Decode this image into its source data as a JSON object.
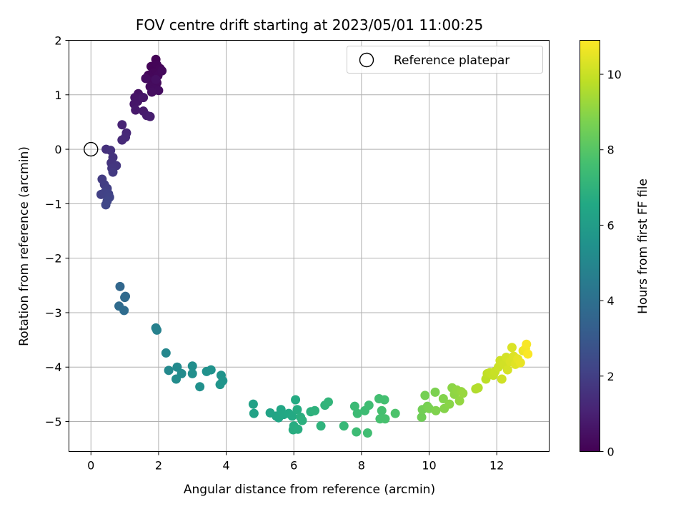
{
  "chart_data": {
    "type": "scatter",
    "title": "FOV centre drift starting at 2023/05/01 11:00:25",
    "xlabel": "Angular distance from reference (arcmin)",
    "ylabel": "Rotation from reference (arcmin)",
    "xlim": [
      -0.65,
      13.55
    ],
    "ylim": [
      -5.55,
      2.0
    ],
    "xticks": [
      0,
      2,
      4,
      6,
      8,
      10,
      12
    ],
    "xtick_labels": [
      "0",
      "2",
      "4",
      "6",
      "8",
      "10",
      "12"
    ],
    "yticks": [
      2,
      1,
      0,
      -1,
      -2,
      -3,
      -4,
      -5
    ],
    "ytick_labels": [
      "2",
      "1",
      "0",
      "−1",
      "−2",
      "−3",
      "−4",
      "−5"
    ],
    "grid": true,
    "legend": {
      "placement": "top-right",
      "entries": [
        "Reference platepar"
      ]
    },
    "reference_point": {
      "x": 0,
      "y": 0
    },
    "colorbar": {
      "label": "Hours from first FF file",
      "colormap": "viridis",
      "range": [
        0,
        10.9
      ],
      "ticks": [
        0,
        2,
        4,
        6,
        8,
        10
      ],
      "tick_labels": [
        "0",
        "2",
        "4",
        "6",
        "8",
        "10"
      ]
    },
    "points": [
      {
        "x": 1.92,
        "y": 1.65,
        "c": 0.05
      },
      {
        "x": 1.78,
        "y": 1.52,
        "c": 0.1
      },
      {
        "x": 1.95,
        "y": 1.55,
        "c": 0.12
      },
      {
        "x": 2.05,
        "y": 1.48,
        "c": 0.15
      },
      {
        "x": 1.85,
        "y": 1.4,
        "c": 0.18
      },
      {
        "x": 1.7,
        "y": 1.36,
        "c": 0.2
      },
      {
        "x": 1.98,
        "y": 1.35,
        "c": 0.22
      },
      {
        "x": 2.1,
        "y": 1.44,
        "c": 0.25
      },
      {
        "x": 1.8,
        "y": 1.25,
        "c": 0.28
      },
      {
        "x": 1.95,
        "y": 1.22,
        "c": 0.3
      },
      {
        "x": 1.75,
        "y": 1.15,
        "c": 0.33
      },
      {
        "x": 1.88,
        "y": 1.1,
        "c": 0.35
      },
      {
        "x": 2.0,
        "y": 1.08,
        "c": 0.38
      },
      {
        "x": 1.8,
        "y": 1.05,
        "c": 0.4
      },
      {
        "x": 1.62,
        "y": 1.3,
        "c": 0.42
      },
      {
        "x": 1.92,
        "y": 1.28,
        "c": 0.45
      },
      {
        "x": 1.4,
        "y": 1.02,
        "c": 0.5
      },
      {
        "x": 1.48,
        "y": 0.96,
        "c": 0.55
      },
      {
        "x": 1.3,
        "y": 0.95,
        "c": 0.6
      },
      {
        "x": 1.38,
        "y": 0.88,
        "c": 0.62
      },
      {
        "x": 1.28,
        "y": 0.83,
        "c": 0.65
      },
      {
        "x": 1.55,
        "y": 0.95,
        "c": 0.7
      },
      {
        "x": 1.32,
        "y": 0.72,
        "c": 0.75
      },
      {
        "x": 1.55,
        "y": 0.7,
        "c": 0.8
      },
      {
        "x": 1.65,
        "y": 0.62,
        "c": 0.85
      },
      {
        "x": 1.75,
        "y": 0.6,
        "c": 0.9
      },
      {
        "x": 1.05,
        "y": 0.3,
        "c": 1.2
      },
      {
        "x": 0.92,
        "y": 0.45,
        "c": 1.1
      },
      {
        "x": 1.02,
        "y": 0.22,
        "c": 1.25
      },
      {
        "x": 0.92,
        "y": 0.17,
        "c": 1.3
      },
      {
        "x": 0.45,
        "y": 0.0,
        "c": 1.5
      },
      {
        "x": 0.58,
        "y": -0.02,
        "c": 1.55
      },
      {
        "x": 0.65,
        "y": -0.15,
        "c": 1.6
      },
      {
        "x": 0.6,
        "y": -0.25,
        "c": 1.65
      },
      {
        "x": 0.75,
        "y": -0.3,
        "c": 1.7
      },
      {
        "x": 0.62,
        "y": -0.35,
        "c": 1.75
      },
      {
        "x": 0.65,
        "y": -0.42,
        "c": 1.8
      },
      {
        "x": 0.33,
        "y": -0.55,
        "c": 1.9
      },
      {
        "x": 0.4,
        "y": -0.65,
        "c": 1.95
      },
      {
        "x": 0.48,
        "y": -0.72,
        "c": 2.0
      },
      {
        "x": 0.3,
        "y": -0.83,
        "c": 2.05
      },
      {
        "x": 0.4,
        "y": -0.8,
        "c": 2.1
      },
      {
        "x": 0.52,
        "y": -0.82,
        "c": 2.15
      },
      {
        "x": 0.55,
        "y": -0.88,
        "c": 2.2
      },
      {
        "x": 0.48,
        "y": -0.95,
        "c": 2.25
      },
      {
        "x": 0.44,
        "y": -1.02,
        "c": 2.3
      },
      {
        "x": 0.86,
        "y": -2.52,
        "c": 3.6
      },
      {
        "x": 1.02,
        "y": -2.7,
        "c": 3.7
      },
      {
        "x": 1.0,
        "y": -2.72,
        "c": 3.75
      },
      {
        "x": 0.83,
        "y": -2.88,
        "c": 3.8
      },
      {
        "x": 0.98,
        "y": -2.96,
        "c": 3.85
      },
      {
        "x": 1.92,
        "y": -3.28,
        "c": 4.7
      },
      {
        "x": 1.95,
        "y": -3.32,
        "c": 4.75
      },
      {
        "x": 2.22,
        "y": -3.74,
        "c": 5.0
      },
      {
        "x": 2.3,
        "y": -4.06,
        "c": 5.1
      },
      {
        "x": 2.55,
        "y": -4.0,
        "c": 5.15
      },
      {
        "x": 2.68,
        "y": -4.12,
        "c": 5.2
      },
      {
        "x": 2.52,
        "y": -4.22,
        "c": 5.25
      },
      {
        "x": 3.0,
        "y": -3.98,
        "c": 5.3
      },
      {
        "x": 3.0,
        "y": -4.12,
        "c": 5.35
      },
      {
        "x": 3.22,
        "y": -4.36,
        "c": 5.4
      },
      {
        "x": 3.42,
        "y": -4.08,
        "c": 5.45
      },
      {
        "x": 3.55,
        "y": -4.05,
        "c": 5.5
      },
      {
        "x": 3.85,
        "y": -4.15,
        "c": 5.55
      },
      {
        "x": 3.9,
        "y": -4.25,
        "c": 5.6
      },
      {
        "x": 3.82,
        "y": -4.32,
        "c": 5.65
      },
      {
        "x": 4.8,
        "y": -4.68,
        "c": 6.2
      },
      {
        "x": 4.82,
        "y": -4.85,
        "c": 6.25
      },
      {
        "x": 5.3,
        "y": -4.84,
        "c": 6.3
      },
      {
        "x": 5.48,
        "y": -4.9,
        "c": 6.35
      },
      {
        "x": 5.55,
        "y": -4.93,
        "c": 6.4
      },
      {
        "x": 5.62,
        "y": -4.78,
        "c": 6.45
      },
      {
        "x": 5.7,
        "y": -4.87,
        "c": 6.5
      },
      {
        "x": 5.85,
        "y": -4.85,
        "c": 6.55
      },
      {
        "x": 5.95,
        "y": -4.9,
        "c": 6.6
      },
      {
        "x": 6.05,
        "y": -4.6,
        "c": 6.65
      },
      {
        "x": 6.1,
        "y": -4.78,
        "c": 6.7
      },
      {
        "x": 6.0,
        "y": -5.08,
        "c": 6.72
      },
      {
        "x": 5.98,
        "y": -5.15,
        "c": 6.75
      },
      {
        "x": 6.12,
        "y": -5.14,
        "c": 6.78
      },
      {
        "x": 6.2,
        "y": -4.92,
        "c": 6.8
      },
      {
        "x": 6.25,
        "y": -4.98,
        "c": 6.85
      },
      {
        "x": 6.5,
        "y": -4.82,
        "c": 6.9
      },
      {
        "x": 6.62,
        "y": -4.8,
        "c": 6.95
      },
      {
        "x": 6.8,
        "y": -5.08,
        "c": 7.0
      },
      {
        "x": 6.92,
        "y": -4.7,
        "c": 7.05
      },
      {
        "x": 7.02,
        "y": -4.64,
        "c": 7.1
      },
      {
        "x": 7.48,
        "y": -5.08,
        "c": 7.25
      },
      {
        "x": 7.8,
        "y": -4.72,
        "c": 7.35
      },
      {
        "x": 7.88,
        "y": -4.85,
        "c": 7.4
      },
      {
        "x": 7.85,
        "y": -5.19,
        "c": 7.42
      },
      {
        "x": 8.1,
        "y": -4.8,
        "c": 7.45
      },
      {
        "x": 8.22,
        "y": -4.7,
        "c": 7.5
      },
      {
        "x": 8.18,
        "y": -5.21,
        "c": 7.52
      },
      {
        "x": 8.52,
        "y": -4.58,
        "c": 7.6
      },
      {
        "x": 8.68,
        "y": -4.6,
        "c": 7.62
      },
      {
        "x": 8.6,
        "y": -4.8,
        "c": 7.65
      },
      {
        "x": 8.55,
        "y": -4.95,
        "c": 7.68
      },
      {
        "x": 8.7,
        "y": -4.95,
        "c": 7.7
      },
      {
        "x": 9.0,
        "y": -4.85,
        "c": 7.8
      },
      {
        "x": 9.78,
        "y": -4.92,
        "c": 8.5
      },
      {
        "x": 9.8,
        "y": -4.78,
        "c": 8.55
      },
      {
        "x": 9.88,
        "y": -4.52,
        "c": 8.6
      },
      {
        "x": 9.95,
        "y": -4.72,
        "c": 8.65
      },
      {
        "x": 10.0,
        "y": -4.76,
        "c": 8.7
      },
      {
        "x": 10.18,
        "y": -4.46,
        "c": 8.75
      },
      {
        "x": 10.2,
        "y": -4.8,
        "c": 8.8
      },
      {
        "x": 10.42,
        "y": -4.58,
        "c": 8.85
      },
      {
        "x": 10.45,
        "y": -4.76,
        "c": 8.9
      },
      {
        "x": 10.6,
        "y": -4.68,
        "c": 8.95
      },
      {
        "x": 10.68,
        "y": -4.38,
        "c": 9.0
      },
      {
        "x": 10.75,
        "y": -4.5,
        "c": 9.05
      },
      {
        "x": 10.82,
        "y": -4.42,
        "c": 9.1
      },
      {
        "x": 10.9,
        "y": -4.62,
        "c": 9.12
      },
      {
        "x": 10.95,
        "y": -4.45,
        "c": 9.15
      },
      {
        "x": 11.0,
        "y": -4.48,
        "c": 9.2
      },
      {
        "x": 11.38,
        "y": -4.4,
        "c": 9.6
      },
      {
        "x": 11.45,
        "y": -4.38,
        "c": 9.65
      },
      {
        "x": 11.68,
        "y": -4.22,
        "c": 9.8
      },
      {
        "x": 11.72,
        "y": -4.12,
        "c": 9.85
      },
      {
        "x": 11.8,
        "y": -4.1,
        "c": 9.9
      },
      {
        "x": 11.9,
        "y": -4.15,
        "c": 9.95
      },
      {
        "x": 11.95,
        "y": -4.08,
        "c": 10.0
      },
      {
        "x": 12.05,
        "y": -4.0,
        "c": 10.05
      },
      {
        "x": 12.1,
        "y": -3.88,
        "c": 10.1
      },
      {
        "x": 12.15,
        "y": -4.22,
        "c": 10.12
      },
      {
        "x": 12.22,
        "y": -3.95,
        "c": 10.15
      },
      {
        "x": 12.28,
        "y": -3.82,
        "c": 10.2
      },
      {
        "x": 12.32,
        "y": -4.05,
        "c": 10.22
      },
      {
        "x": 12.4,
        "y": -3.9,
        "c": 10.28
      },
      {
        "x": 12.45,
        "y": -3.64,
        "c": 10.3
      },
      {
        "x": 12.5,
        "y": -3.8,
        "c": 10.35
      },
      {
        "x": 12.55,
        "y": -3.95,
        "c": 10.4
      },
      {
        "x": 12.62,
        "y": -3.85,
        "c": 10.5
      },
      {
        "x": 12.7,
        "y": -3.92,
        "c": 10.55
      },
      {
        "x": 12.78,
        "y": -3.7,
        "c": 10.65
      },
      {
        "x": 12.85,
        "y": -3.66,
        "c": 10.72
      },
      {
        "x": 12.88,
        "y": -3.58,
        "c": 10.8
      },
      {
        "x": 12.92,
        "y": -3.76,
        "c": 10.85
      }
    ]
  }
}
